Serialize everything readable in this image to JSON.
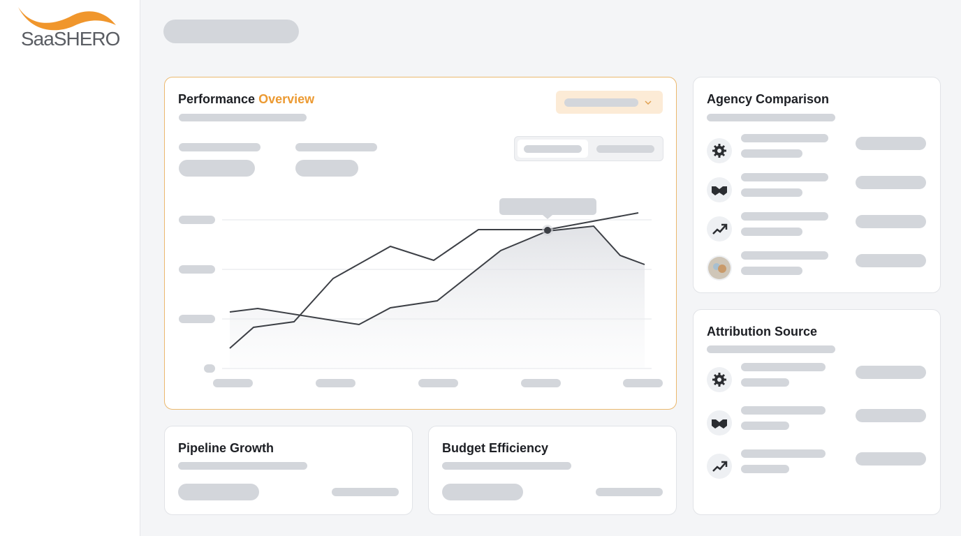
{
  "logo": "SaaSHERO",
  "performance": {
    "title_start": "Performance",
    "title_accent": "Overview"
  },
  "agency": {
    "title": "Agency Comparison"
  },
  "attribution": {
    "title": "Attribution Source"
  },
  "pipeline": {
    "title": "Pipeline Growth"
  },
  "budget": {
    "title": "Budget Efficiency"
  }
}
